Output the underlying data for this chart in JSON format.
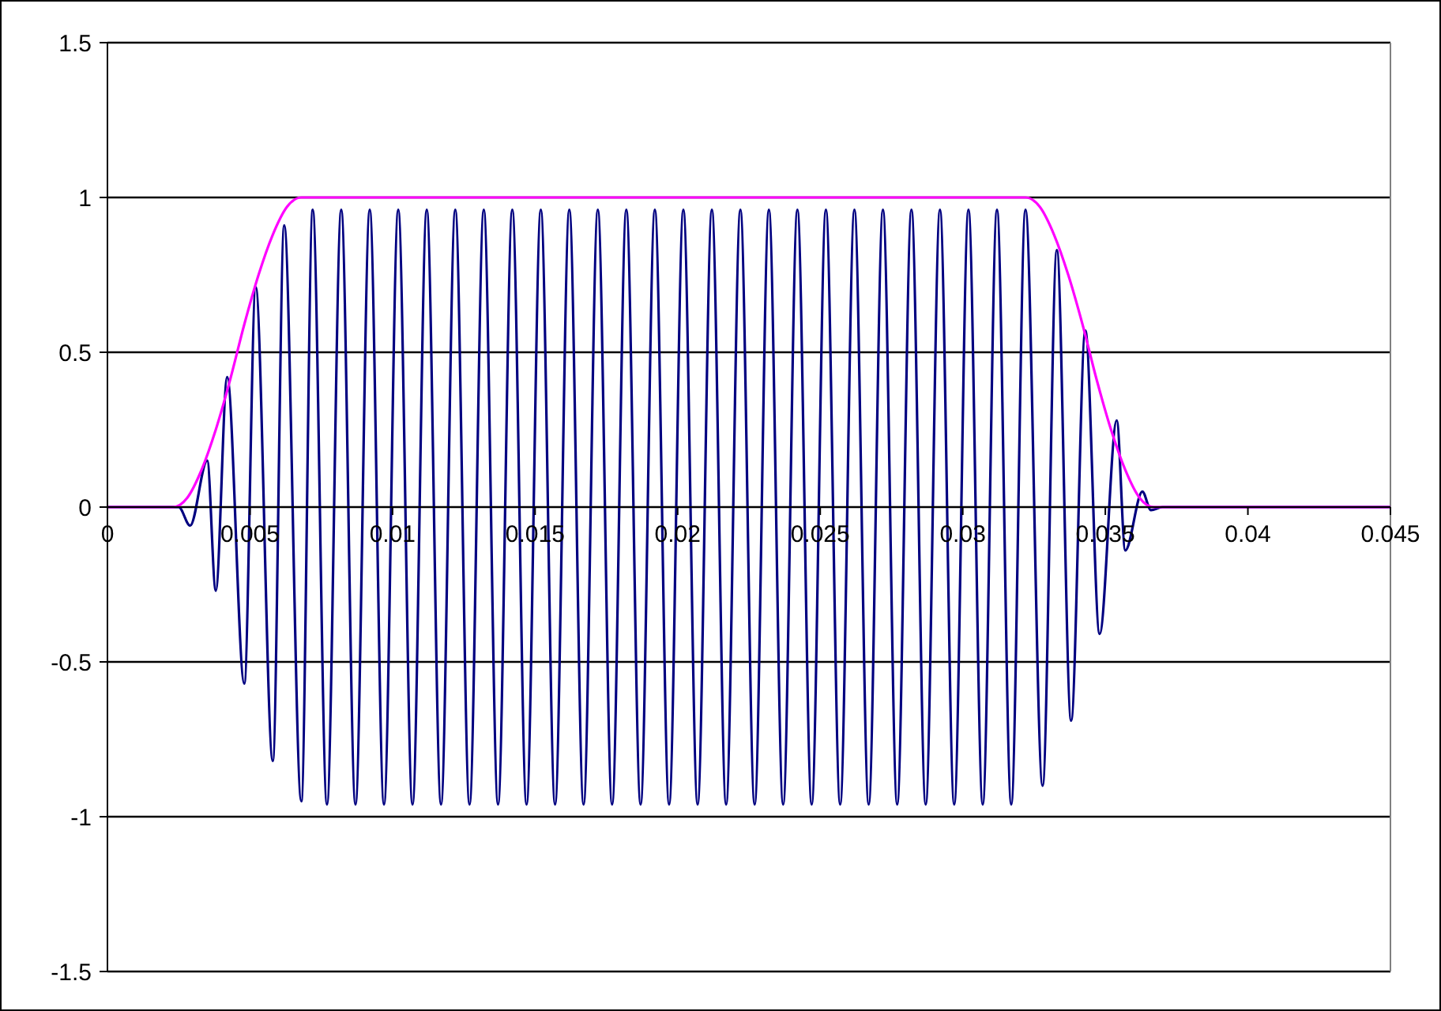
{
  "chart_data": {
    "type": "line",
    "xlim": [
      0,
      0.045
    ],
    "xticks": [
      0,
      0.005,
      0.01,
      0.015,
      0.02,
      0.025,
      0.03,
      0.035,
      0.04,
      0.045
    ],
    "ylim": [
      -1.5,
      1.5
    ],
    "yticks": [
      -1.5,
      -1,
      -0.5,
      0,
      0.5,
      1,
      1.5
    ],
    "grid": "y",
    "marker": "none",
    "line_style": "solid",
    "series": [
      {
        "color": "#000080",
        "x": [
          0,
          0.0025,
          0.0029,
          0.0035,
          0.0038,
          0.0042,
          0.0048,
          0.0052,
          0.0058,
          0.0062,
          0.0068,
          0.0072,
          0.0077,
          0.0082,
          0.0087,
          0.0092,
          0.0097,
          0.0102,
          0.0107,
          0.0112,
          0.0117,
          0.0122,
          0.0127,
          0.0132,
          0.0137,
          0.0142,
          0.0147,
          0.0152,
          0.0157,
          0.0162,
          0.0167,
          0.0172,
          0.0177,
          0.0182,
          0.0187,
          0.0192,
          0.0197,
          0.0202,
          0.0207,
          0.0212,
          0.0217,
          0.0222,
          0.0227,
          0.0232,
          0.0237,
          0.0242,
          0.0247,
          0.0252,
          0.0257,
          0.0262,
          0.0267,
          0.0272,
          0.0277,
          0.0282,
          0.0287,
          0.0292,
          0.0297,
          0.0302,
          0.0307,
          0.0312,
          0.0317,
          0.0322,
          0.0328,
          0.0333,
          0.0338,
          0.0343,
          0.0348,
          0.0354,
          0.0357,
          0.0363,
          0.0366,
          0.037,
          0.045
        ],
        "values": [
          0,
          0,
          -0.06,
          0.15,
          -0.27,
          0.42,
          -0.57,
          0.71,
          -0.82,
          0.91,
          -0.95,
          0.96,
          -0.96,
          0.96,
          -0.96,
          0.96,
          -0.96,
          0.96,
          -0.96,
          0.96,
          -0.96,
          0.96,
          -0.96,
          0.96,
          -0.96,
          0.96,
          -0.96,
          0.96,
          -0.96,
          0.96,
          -0.96,
          0.96,
          -0.96,
          0.96,
          -0.96,
          0.96,
          -0.96,
          0.96,
          -0.96,
          0.96,
          -0.96,
          0.96,
          -0.96,
          0.96,
          -0.96,
          0.96,
          -0.96,
          0.96,
          -0.96,
          0.96,
          -0.96,
          0.96,
          -0.96,
          0.96,
          -0.96,
          0.96,
          -0.96,
          0.96,
          -0.96,
          0.96,
          -0.96,
          0.96,
          -0.9,
          0.83,
          -0.69,
          0.57,
          -0.41,
          0.28,
          -0.14,
          0.05,
          -0.01,
          0,
          0
        ]
      },
      {
        "color": "#ff00ff",
        "x": [
          0,
          0.0023,
          0.0028,
          0.0033,
          0.0038,
          0.0043,
          0.0048,
          0.0053,
          0.0058,
          0.0063,
          0.0068,
          0.0322,
          0.0327,
          0.0332,
          0.0337,
          0.0342,
          0.0347,
          0.0352,
          0.0357,
          0.0362,
          0.0367,
          0.045
        ],
        "values": [
          0,
          0,
          0.03,
          0.12,
          0.25,
          0.41,
          0.59,
          0.75,
          0.88,
          0.97,
          1,
          1,
          0.97,
          0.88,
          0.75,
          0.59,
          0.41,
          0.25,
          0.12,
          0.03,
          0,
          0
        ]
      }
    ]
  }
}
